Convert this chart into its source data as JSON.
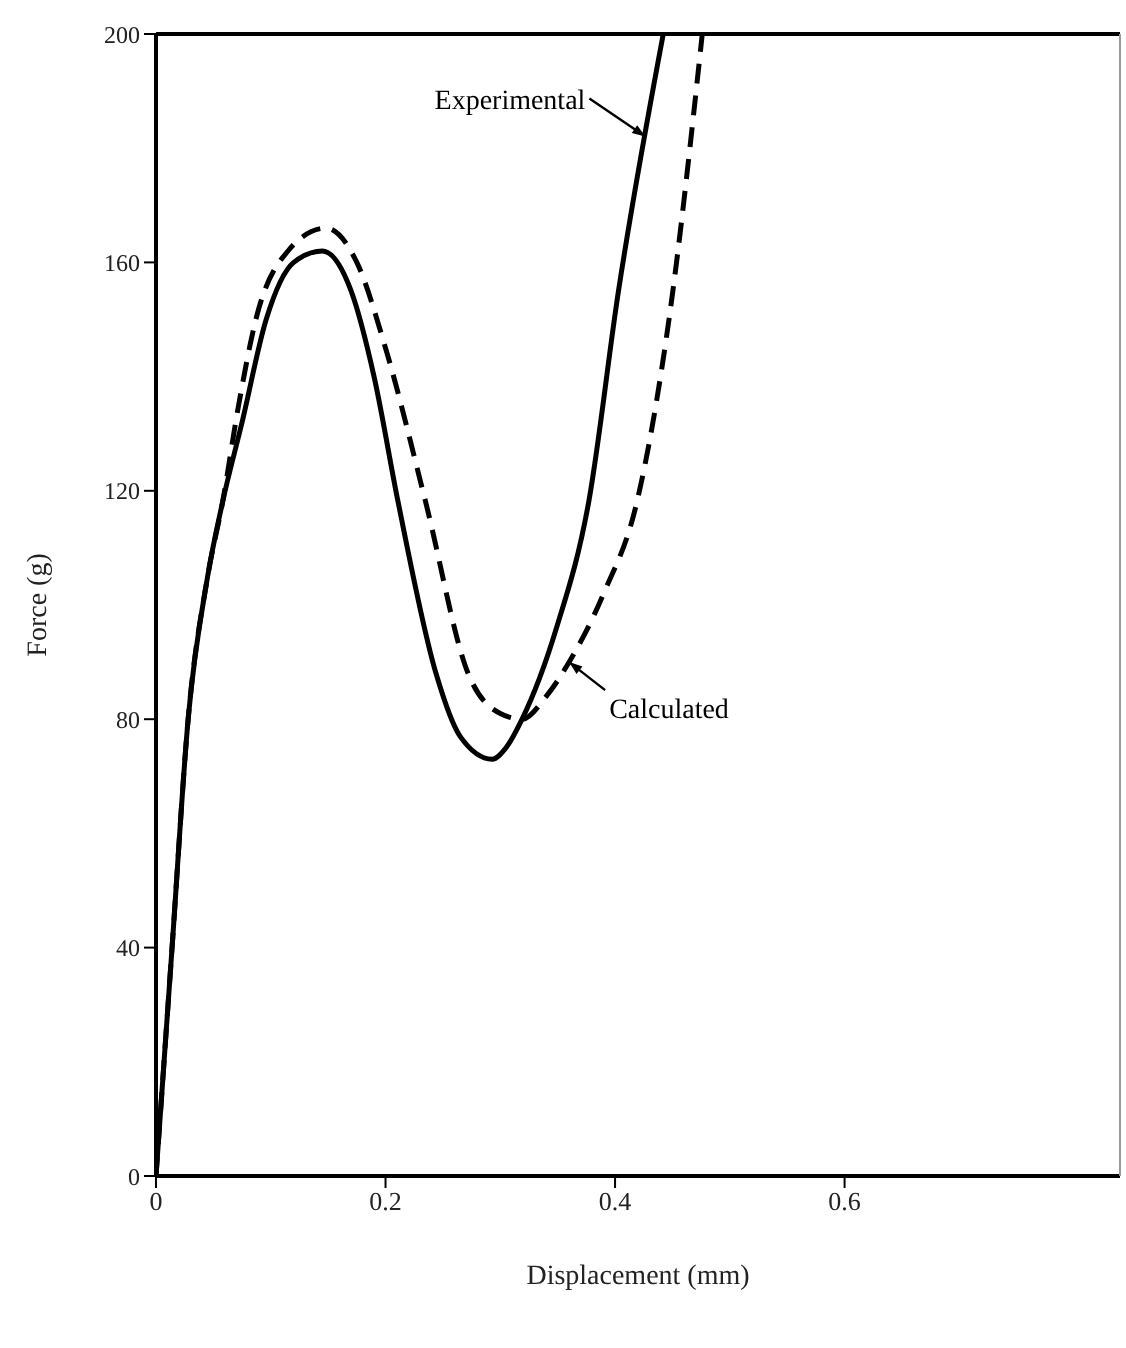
{
  "chart_data": {
    "type": "line",
    "xlabel": "Displacement (mm)",
    "ylabel": "Force (g)",
    "xlim": [
      0,
      0.84
    ],
    "ylim": [
      0,
      200
    ],
    "xticks": [
      0,
      0.2,
      0.4,
      0.6
    ],
    "yticks": [
      0,
      40,
      80,
      120,
      160,
      200
    ],
    "marker": "none",
    "series": [
      {
        "name": "Experimental",
        "color": "#000000",
        "line_style": "solid",
        "x": [
          0,
          0.007,
          0.014,
          0.028,
          0.045,
          0.058,
          0.075,
          0.096,
          0.12,
          0.145,
          0.17,
          0.19,
          0.211,
          0.244,
          0.265,
          0.293,
          0.305,
          0.319,
          0.349,
          0.377,
          0.403,
          0.442
        ],
        "values": [
          0,
          20,
          40,
          80,
          105,
          118,
          132,
          150,
          160,
          162,
          155,
          140,
          118,
          88,
          77,
          73,
          75,
          80,
          96,
          118,
          155,
          200
        ]
      },
      {
        "name": "Calculated",
        "color": "#000000",
        "line_style": "dashed",
        "x": [
          0,
          0.007,
          0.014,
          0.028,
          0.045,
          0.058,
          0.072,
          0.087,
          0.115,
          0.148,
          0.175,
          0.2,
          0.235,
          0.272,
          0.3,
          0.319,
          0.34,
          0.36,
          0.39,
          0.419,
          0.447,
          0.476
        ],
        "values": [
          0,
          20,
          40,
          80,
          105,
          118,
          135,
          150,
          162,
          166,
          160,
          145,
          118,
          88,
          81,
          80,
          84,
          90,
          102,
          118,
          150,
          200
        ]
      }
    ]
  }
}
